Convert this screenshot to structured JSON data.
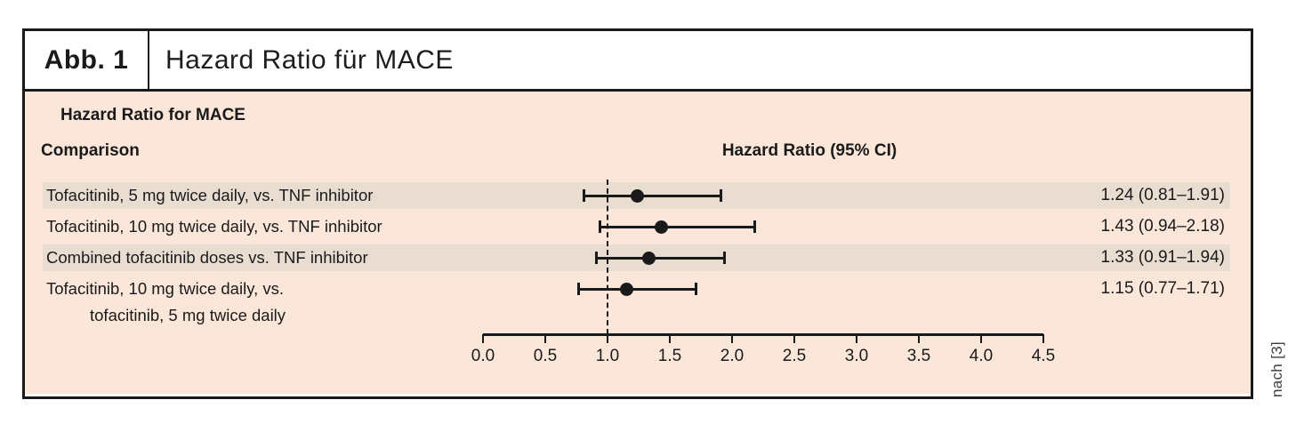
{
  "figure": {
    "label": "Abb. 1",
    "title": "Hazard Ratio für MACE",
    "source_note": "nach [3]"
  },
  "chart_data": {
    "type": "forest",
    "title": "Hazard Ratio for MACE",
    "columns": {
      "comparison": "Comparison",
      "hazard_ratio": "Hazard Ratio (95% CI)"
    },
    "axis": {
      "min": 0.0,
      "max": 4.5,
      "tick_step": 0.5,
      "tick_labels": [
        "0.0",
        "0.5",
        "1.0",
        "1.5",
        "2.0",
        "2.5",
        "3.0",
        "3.5",
        "4.0",
        "4.5"
      ],
      "reference_line": 1.0
    },
    "rows": [
      {
        "label_lines": [
          "Tofacitinib, 5 mg twice daily, vs. TNF inhibitor"
        ],
        "hr": 1.24,
        "ci_low": 0.81,
        "ci_high": 1.91,
        "value_text": "1.24 (0.81–1.91)",
        "shaded": true
      },
      {
        "label_lines": [
          "Tofacitinib, 10 mg twice daily, vs. TNF inhibitor"
        ],
        "hr": 1.43,
        "ci_low": 0.94,
        "ci_high": 2.18,
        "value_text": "1.43 (0.94–2.18)",
        "shaded": false
      },
      {
        "label_lines": [
          "Combined tofacitinib doses vs. TNF inhibitor"
        ],
        "hr": 1.33,
        "ci_low": 0.91,
        "ci_high": 1.94,
        "value_text": "1.33 (0.91–1.94)",
        "shaded": true
      },
      {
        "label_lines": [
          "Tofacitinib, 10 mg twice daily, vs.",
          "tofacitinib, 5 mg twice daily"
        ],
        "hr": 1.15,
        "ci_low": 0.77,
        "ci_high": 1.71,
        "value_text": "1.15 (0.77–1.71)",
        "shaded": false
      }
    ]
  },
  "colors": {
    "panel_bg": "#fbe7da",
    "row_band": "#e9ddd2",
    "ink": "#1a1a1a",
    "note_text": "#3f3f3f"
  }
}
